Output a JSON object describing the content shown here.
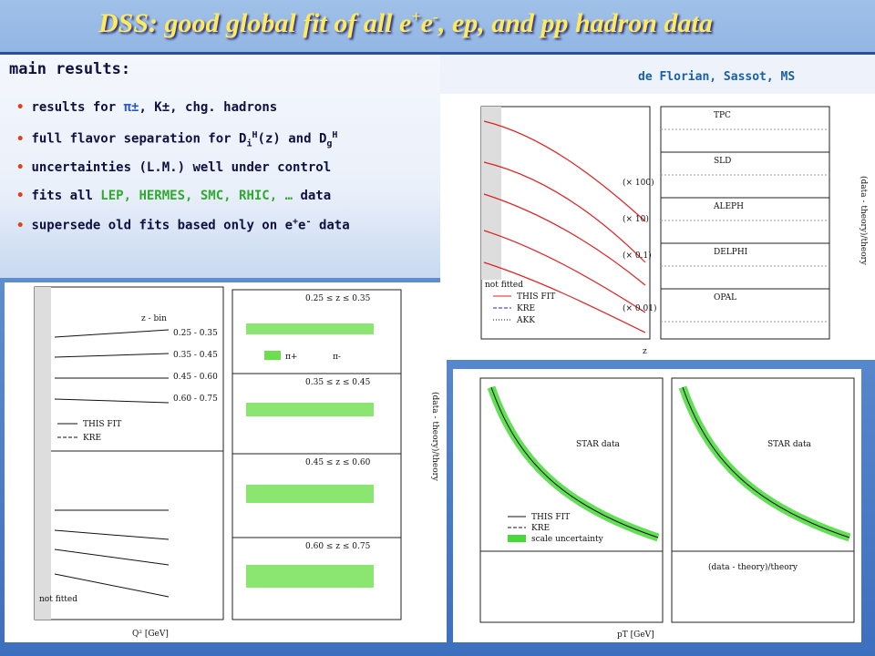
{
  "header": {
    "title": [
      {
        "text": "DSS: good global fit of all e",
        "style": "plain"
      },
      {
        "text": "+",
        "style": "sup"
      },
      {
        "text": "e",
        "style": "plain"
      },
      {
        "text": "-",
        "style": "sup"
      },
      {
        "text": ", ep, and pp hadron data",
        "style": "plain"
      }
    ],
    "subtitle": "main results:",
    "credit": "de Florian, Sassot, MS"
  },
  "bullets": [
    [
      {
        "text": "results for ",
        "style": "plain"
      },
      {
        "text": "π±",
        "style": "blue"
      },
      {
        "text": ", K±, chg. hadrons",
        "style": "plain"
      }
    ],
    [
      {
        "text": "full flavor separation for D",
        "style": "plain"
      },
      {
        "text": "i",
        "style": "sub"
      },
      {
        "text": "H",
        "style": "sup"
      },
      {
        "text": "(z) and D",
        "style": "plain"
      },
      {
        "text": "g",
        "style": "sub"
      },
      {
        "text": "H",
        "style": "sup"
      }
    ],
    [
      {
        "text": "uncertainties (L.M.) well under control",
        "style": "plain"
      }
    ],
    [
      {
        "text": "fits all ",
        "style": "plain"
      },
      {
        "text": "LEP, HERMES, SMC, RHIC, …",
        "style": "green"
      },
      {
        "text": " data",
        "style": "plain"
      }
    ],
    [
      {
        "text": "supersede old fits based only on e",
        "style": "plain"
      },
      {
        "text": "+",
        "style": "sup"
      },
      {
        "text": "e",
        "style": "plain"
      },
      {
        "text": "-",
        "style": "sup"
      },
      {
        "text": " data",
        "style": "plain"
      }
    ]
  ],
  "fig_ee": {
    "legend": [
      "THIS FIT",
      "KRE",
      "AKK"
    ],
    "experiments": [
      "TPC",
      "SLD",
      "ALEPH",
      "DELPHI",
      "OPAL"
    ],
    "scales": [
      "(× 100)",
      "(× 10)",
      "(× 0.1)",
      "(× 0.01)"
    ],
    "not_fitted": "not fitted",
    "x_label": "z",
    "ratio_label": "(data - theory)/theory"
  },
  "fig_dis": {
    "z_bin_label": "z - bin",
    "bins": [
      "0.25 - 0.35",
      "0.35 - 0.45",
      "0.45 - 0.60",
      "0.60 - 0.75"
    ],
    "legend": [
      "THIS FIT",
      "KRE"
    ],
    "z_ranges": [
      "0.25 ≤ z ≤ 0.35",
      "0.35 ≤ z ≤ 0.45",
      "0.45 ≤ z ≤ 0.60",
      "0.60 ≤ z ≤ 0.75"
    ],
    "pions": [
      "π+",
      "π-"
    ],
    "not_fitted": "not fitted",
    "x_label": "Q² [GeV]",
    "ratio_label": "(data - theory)/theory"
  },
  "fig_star": {
    "legend": [
      "THIS FIT",
      "KRE",
      "scale uncertainty"
    ],
    "data_labels": [
      "STAR data",
      "STAR data"
    ],
    "x_label": "pT [GeV]",
    "ratio_label": "(data - theory)/theory"
  }
}
